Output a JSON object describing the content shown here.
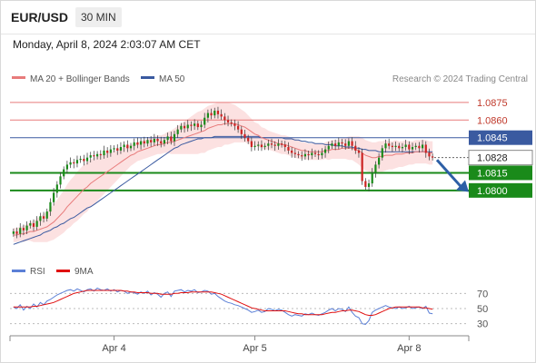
{
  "header": {
    "symbol": "EUR/USD",
    "timeframe": "30 MIN",
    "datetime": "Monday, April 8, 2024 2:03:07 AM CET"
  },
  "legend": {
    "ma20_label": "MA 20 + Bollinger Bands",
    "ma50_label": "MA 50",
    "copyright": "Research © 2024 Trading Central"
  },
  "colors": {
    "ma20": "#e87b7b",
    "ma50": "#3a5aa0",
    "resistance": "#e87b7b",
    "support": "#1a8a1a",
    "current": "#3a5aa0",
    "arrow": "#2d5fa6",
    "rsi": "#5b7fd6",
    "rsi_ma": "#e01010",
    "up": "#1a8a1a",
    "down": "#cc2222"
  },
  "chart_data": [
    {
      "type": "candlestick",
      "ylim": [
        1.0755,
        1.0885
      ],
      "resistance_levels": [
        {
          "label": "1.0875",
          "value": 1.0875
        },
        {
          "label": "1.0860",
          "value": 1.086
        }
      ],
      "current_level": {
        "label": "1.0845",
        "value": 1.0845
      },
      "last_price": {
        "label": "1.0828",
        "value": 1.0828
      },
      "support_levels": [
        {
          "label": "1.0815",
          "value": 1.0815
        },
        {
          "label": "1.0800",
          "value": 1.08
        }
      ],
      "forecast_arrow": {
        "from": 1.0826,
        "to": 1.0801
      },
      "x_ticks": [
        "Apr 4",
        "Apr 5",
        "Apr 8"
      ],
      "x_tick_index": [
        30,
        72,
        118
      ],
      "n_bars": 126,
      "close": [
        1.0765,
        1.0763,
        1.0768,
        1.0766,
        1.077,
        1.0772,
        1.0769,
        1.0774,
        1.0778,
        1.0776,
        1.0782,
        1.079,
        1.0798,
        1.0805,
        1.0812,
        1.0818,
        1.0822,
        1.0824,
        1.0823,
        1.0826,
        1.0827,
        1.0825,
        1.0828,
        1.083,
        1.0829,
        1.0831,
        1.083,
        1.0834,
        1.0832,
        1.0835,
        1.0836,
        1.0834,
        1.0837,
        1.0839,
        1.0836,
        1.0838,
        1.0841,
        1.0839,
        1.0842,
        1.084,
        1.0843,
        1.0841,
        1.0844,
        1.0842,
        1.084,
        1.0843,
        1.0846,
        1.0842,
        1.0848,
        1.0852,
        1.0855,
        1.0853,
        1.0856,
        1.0855,
        1.0857,
        1.0854,
        1.0856,
        1.0862,
        1.0866,
        1.0864,
        1.0868,
        1.0865,
        1.0863,
        1.086,
        1.0858,
        1.0857,
        1.0855,
        1.0852,
        1.0848,
        1.0845,
        1.0842,
        1.0837,
        1.0838,
        1.0839,
        1.0837,
        1.0838,
        1.084,
        1.0839,
        1.0838,
        1.084,
        1.0839,
        1.0837,
        1.0834,
        1.0832,
        1.0831,
        1.083,
        1.0829,
        1.0831,
        1.083,
        1.0832,
        1.0831,
        1.083,
        1.0832,
        1.0835,
        1.0838,
        1.084,
        1.0838,
        1.0841,
        1.084,
        1.0838,
        1.0842,
        1.0838,
        1.0834,
        1.0832,
        1.0808,
        1.0803,
        1.0806,
        1.0815,
        1.0822,
        1.0828,
        1.0836,
        1.084,
        1.0838,
        1.0837,
        1.0838,
        1.0836,
        1.0837,
        1.0839,
        1.0835,
        1.0837,
        1.0838,
        1.0836,
        1.0839,
        1.0832,
        1.0829,
        1.0828
      ],
      "ma20": [
        1.0762,
        1.0762,
        1.0763,
        1.0763,
        1.0764,
        1.0765,
        1.0765,
        1.0766,
        1.0767,
        1.0768,
        1.0769,
        1.0771,
        1.0773,
        1.0776,
        1.0779,
        1.0782,
        1.0786,
        1.0789,
        1.0792,
        1.0795,
        1.0798,
        1.0801,
        1.0803,
        1.0806,
        1.0808,
        1.081,
        1.0812,
        1.0814,
        1.0816,
        1.0818,
        1.082,
        1.0822,
        1.0824,
        1.0826,
        1.0828,
        1.083,
        1.0831,
        1.0833,
        1.0834,
        1.0835,
        1.0836,
        1.0837,
        1.0838,
        1.0839,
        1.0839,
        1.084,
        1.0841,
        1.0841,
        1.0842,
        1.0843,
        1.0844,
        1.0845,
        1.0846,
        1.0847,
        1.0848,
        1.0849,
        1.085,
        1.0851,
        1.0853,
        1.0854,
        1.0855,
        1.0856,
        1.0856,
        1.0857,
        1.0857,
        1.0857,
        1.0857,
        1.0856,
        1.0855,
        1.0854,
        1.0852,
        1.085,
        1.0848,
        1.0847,
        1.0845,
        1.0844,
        1.0843,
        1.0842,
        1.0841,
        1.084,
        1.0839,
        1.0839,
        1.0838,
        1.0837,
        1.0836,
        1.0835,
        1.0834,
        1.0834,
        1.0833,
        1.0833,
        1.0833,
        1.0833,
        1.0833,
        1.0834,
        1.0834,
        1.0835,
        1.0835,
        1.0835,
        1.0836,
        1.0836,
        1.0836,
        1.0836,
        1.0835,
        1.0834,
        1.0832,
        1.083,
        1.0829,
        1.0828,
        1.0828,
        1.0829,
        1.0829,
        1.083,
        1.083,
        1.083,
        1.0831,
        1.0831,
        1.0831,
        1.0832,
        1.0832,
        1.0832,
        1.0833,
        1.0833,
        1.0833,
        1.0833,
        1.0832,
        1.0832
      ],
      "ma50": [
        1.0754,
        1.0755,
        1.0756,
        1.0757,
        1.0758,
        1.0759,
        1.076,
        1.0761,
        1.0762,
        1.0764,
        1.0765,
        1.0766,
        1.0768,
        1.0769,
        1.0771,
        1.0772,
        1.0774,
        1.0776,
        1.0777,
        1.0779,
        1.0781,
        1.0783,
        1.0785,
        1.0786,
        1.0788,
        1.079,
        1.0792,
        1.0794,
        1.0796,
        1.0798,
        1.08,
        1.0802,
        1.0804,
        1.0806,
        1.0808,
        1.081,
        1.0812,
        1.0814,
        1.0816,
        1.0818,
        1.082,
        1.0822,
        1.0824,
        1.0826,
        1.0828,
        1.083,
        1.0832,
        1.0834,
        1.0836,
        1.0837,
        1.0839,
        1.084,
        1.0841,
        1.0842,
        1.0843,
        1.0844,
        1.0844,
        1.0845,
        1.0845,
        1.0845,
        1.0846,
        1.0846,
        1.0846,
        1.0846,
        1.0846,
        1.0846,
        1.0846,
        1.0846,
        1.0846,
        1.0846,
        1.0846,
        1.0846,
        1.0846,
        1.0846,
        1.0845,
        1.0845,
        1.0845,
        1.0845,
        1.0845,
        1.0845,
        1.0845,
        1.0844,
        1.0844,
        1.0844,
        1.0843,
        1.0843,
        1.0842,
        1.0842,
        1.0841,
        1.0841,
        1.084,
        1.084,
        1.084,
        1.0839,
        1.0839,
        1.0839,
        1.0838,
        1.0838,
        1.0838,
        1.0837,
        1.0837,
        1.0837,
        1.0836,
        1.0836,
        1.0835,
        1.0835,
        1.0834,
        1.0834,
        1.0834,
        1.0833,
        1.0833,
        1.0833,
        1.0833,
        1.0833,
        1.0833,
        1.0833,
        1.0833,
        1.0833,
        1.0833,
        1.0833,
        1.0833,
        1.0833,
        1.0833,
        1.0833,
        1.0833,
        1.0833
      ],
      "bb_width": [
        0.0006,
        0.0006,
        0.0006,
        0.0007,
        0.0007,
        0.0008,
        0.0009,
        0.001,
        0.0011,
        0.0012,
        0.0013,
        0.0014,
        0.0015,
        0.0016,
        0.0017,
        0.0018,
        0.0019,
        0.002,
        0.002,
        0.0021,
        0.0021,
        0.0021,
        0.0021,
        0.002,
        0.002,
        0.0019,
        0.0018,
        0.0017,
        0.0016,
        0.0015,
        0.0014,
        0.0013,
        0.0012,
        0.0011,
        0.001,
        0.0009,
        0.0008,
        0.0008,
        0.0008,
        0.0008,
        0.0008,
        0.0008,
        0.0008,
        0.0008,
        0.0008,
        0.0008,
        0.0009,
        0.001,
        0.0011,
        0.0012,
        0.0013,
        0.0014,
        0.0015,
        0.0016,
        0.0017,
        0.0018,
        0.0018,
        0.0019,
        0.0019,
        0.0019,
        0.0019,
        0.0019,
        0.0019,
        0.0018,
        0.0018,
        0.0017,
        0.0016,
        0.0015,
        0.0014,
        0.0013,
        0.0012,
        0.0011,
        0.001,
        0.001,
        0.0009,
        0.0009,
        0.0008,
        0.0008,
        0.0008,
        0.0008,
        0.0008,
        0.0008,
        0.0008,
        0.0008,
        0.0008,
        0.0008,
        0.0007,
        0.0007,
        0.0007,
        0.0007,
        0.0007,
        0.0007,
        0.0007,
        0.0007,
        0.0008,
        0.0008,
        0.0008,
        0.0008,
        0.0009,
        0.0009,
        0.001,
        0.001,
        0.0011,
        0.0012,
        0.0013,
        0.0013,
        0.0013,
        0.0013,
        0.0013,
        0.0013,
        0.0013,
        0.0013,
        0.0012,
        0.0012,
        0.0012,
        0.0011,
        0.0011,
        0.0011,
        0.001,
        0.001,
        0.001,
        0.001,
        0.001,
        0.001,
        0.001,
        0.001
      ]
    },
    {
      "type": "line",
      "series_names": [
        "RSI",
        "9MA"
      ],
      "ylim": [
        20,
        80
      ],
      "y_ticks": [
        70,
        50,
        30
      ],
      "rsi": [
        52,
        50,
        55,
        48,
        53,
        50,
        56,
        52,
        58,
        55,
        60,
        62,
        65,
        68,
        70,
        72,
        74,
        75,
        73,
        76,
        74,
        72,
        75,
        76,
        73,
        77,
        75,
        74,
        76,
        73,
        75,
        72,
        74,
        73,
        70,
        72,
        71,
        69,
        72,
        70,
        73,
        68,
        71,
        69,
        65,
        70,
        72,
        66,
        73,
        74,
        75,
        72,
        74,
        73,
        75,
        71,
        72,
        74,
        73,
        69,
        70,
        66,
        63,
        60,
        58,
        57,
        55,
        54,
        52,
        50,
        48,
        45,
        46,
        48,
        45,
        46,
        50,
        49,
        47,
        49,
        48,
        45,
        42,
        40,
        42,
        41,
        40,
        43,
        42,
        44,
        42,
        41,
        43,
        45,
        48,
        50,
        47,
        50,
        49,
        46,
        52,
        45,
        40,
        38,
        30,
        29,
        34,
        45,
        48,
        50,
        52,
        54,
        52,
        51,
        50,
        52,
        50,
        51,
        53,
        50,
        51,
        52,
        50,
        53,
        44,
        43
      ],
      "rsi_ma": [
        52,
        52,
        52,
        52,
        52,
        52,
        53,
        53,
        54,
        55,
        56,
        57,
        58,
        60,
        62,
        64,
        66,
        68,
        70,
        71,
        72,
        73,
        74,
        74,
        74,
        74,
        74,
        74,
        74,
        74,
        74,
        74,
        74,
        73,
        73,
        72,
        72,
        71,
        71,
        71,
        71,
        70,
        70,
        70,
        69,
        69,
        69,
        69,
        70,
        70,
        71,
        71,
        71,
        72,
        72,
        72,
        72,
        72,
        72,
        72,
        71,
        70,
        69,
        67,
        65,
        63,
        61,
        59,
        57,
        55,
        53,
        51,
        50,
        49,
        48,
        47,
        47,
        47,
        47,
        47,
        47,
        47,
        46,
        45,
        44,
        43,
        43,
        42,
        42,
        42,
        42,
        42,
        42,
        43,
        44,
        45,
        45,
        46,
        47,
        47,
        48,
        48,
        47,
        46,
        44,
        42,
        41,
        41,
        42,
        44,
        46,
        48,
        50,
        51,
        52,
        52,
        52,
        52,
        52,
        52,
        52,
        52,
        51,
        51,
        50,
        49
      ]
    }
  ]
}
